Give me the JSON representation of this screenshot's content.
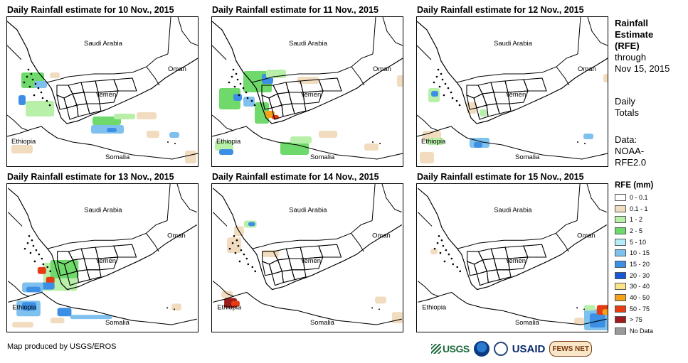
{
  "panels": [
    {
      "title": "Daily Rainfall estimate for 10 Nov., 2015",
      "blobs": [
        {
          "x": 20,
          "y": 78,
          "w": 32,
          "h": 22,
          "c": "green"
        },
        {
          "x": 38,
          "y": 90,
          "w": 18,
          "h": 10,
          "c": "light_blue"
        },
        {
          "x": 60,
          "y": 78,
          "w": 14,
          "h": 8,
          "c": "beige"
        },
        {
          "x": 16,
          "y": 110,
          "w": 10,
          "h": 14,
          "c": "blue"
        },
        {
          "x": 26,
          "y": 118,
          "w": 40,
          "h": 22,
          "c": "light_green"
        },
        {
          "x": 120,
          "y": 140,
          "w": 40,
          "h": 12,
          "c": "green"
        },
        {
          "x": 118,
          "y": 152,
          "w": 46,
          "h": 12,
          "c": "light_blue"
        },
        {
          "x": 140,
          "y": 156,
          "w": 14,
          "h": 6,
          "c": "blue"
        },
        {
          "x": 150,
          "y": 136,
          "w": 30,
          "h": 8,
          "c": "light_green"
        },
        {
          "x": 182,
          "y": 134,
          "w": 28,
          "h": 10,
          "c": "beige"
        },
        {
          "x": 228,
          "y": 162,
          "w": 14,
          "h": 8,
          "c": "light_blue"
        },
        {
          "x": 250,
          "y": 188,
          "w": 16,
          "h": 18,
          "c": "beige"
        },
        {
          "x": 6,
          "y": 180,
          "w": 30,
          "h": 12,
          "c": "beige"
        },
        {
          "x": 196,
          "y": 160,
          "w": 18,
          "h": 10,
          "c": "beige"
        }
      ]
    },
    {
      "title": "Daily Rainfall estimate for 11 Nov., 2015",
      "blobs": [
        {
          "x": 44,
          "y": 76,
          "w": 40,
          "h": 30,
          "c": "green"
        },
        {
          "x": 70,
          "y": 80,
          "w": 16,
          "h": 14,
          "c": "blue"
        },
        {
          "x": 76,
          "y": 74,
          "w": 28,
          "h": 12,
          "c": "light_green"
        },
        {
          "x": 10,
          "y": 100,
          "w": 30,
          "h": 30,
          "c": "green"
        },
        {
          "x": 30,
          "y": 108,
          "w": 12,
          "h": 10,
          "c": "blue"
        },
        {
          "x": 44,
          "y": 112,
          "w": 16,
          "h": 14,
          "c": "light_blue"
        },
        {
          "x": 60,
          "y": 120,
          "w": 20,
          "h": 30,
          "c": "green"
        },
        {
          "x": 74,
          "y": 132,
          "w": 14,
          "h": 10,
          "c": "orange"
        },
        {
          "x": 84,
          "y": 138,
          "w": 10,
          "h": 6,
          "c": "red"
        },
        {
          "x": 4,
          "y": 174,
          "w": 26,
          "h": 14,
          "c": "light_green"
        },
        {
          "x": 10,
          "y": 186,
          "w": 20,
          "h": 8,
          "c": "blue"
        },
        {
          "x": 96,
          "y": 176,
          "w": 40,
          "h": 18,
          "c": "green"
        },
        {
          "x": 110,
          "y": 168,
          "w": 30,
          "h": 10,
          "c": "light_green"
        },
        {
          "x": 214,
          "y": 178,
          "w": 20,
          "h": 10,
          "c": "beige"
        },
        {
          "x": 150,
          "y": 160,
          "w": 26,
          "h": 10,
          "c": "beige"
        },
        {
          "x": 120,
          "y": 84,
          "w": 30,
          "h": 10,
          "c": "beige"
        },
        {
          "x": 260,
          "y": 82,
          "w": 12,
          "h": 16,
          "c": "beige"
        }
      ]
    },
    {
      "title": "Daily Rainfall estimate for 12 Nov., 2015",
      "blobs": [
        {
          "x": 16,
          "y": 100,
          "w": 16,
          "h": 20,
          "c": "light_green"
        },
        {
          "x": 20,
          "y": 104,
          "w": 10,
          "h": 8,
          "c": "blue"
        },
        {
          "x": 70,
          "y": 120,
          "w": 14,
          "h": 16,
          "c": "beige"
        },
        {
          "x": 88,
          "y": 130,
          "w": 10,
          "h": 10,
          "c": "light_green"
        },
        {
          "x": 8,
          "y": 160,
          "w": 26,
          "h": 14,
          "c": "beige"
        },
        {
          "x": 14,
          "y": 170,
          "w": 24,
          "h": 10,
          "c": "light_green"
        },
        {
          "x": 74,
          "y": 170,
          "w": 28,
          "h": 14,
          "c": "light_blue"
        },
        {
          "x": 80,
          "y": 176,
          "w": 12,
          "h": 8,
          "c": "blue"
        },
        {
          "x": 234,
          "y": 164,
          "w": 14,
          "h": 8,
          "c": "light_blue"
        },
        {
          "x": 262,
          "y": 80,
          "w": 12,
          "h": 12,
          "c": "beige"
        },
        {
          "x": 4,
          "y": 190,
          "w": 20,
          "h": 16,
          "c": "beige"
        }
      ]
    },
    {
      "title": "Daily Rainfall estimate for 13 Nov., 2015",
      "blobs": [
        {
          "x": 50,
          "y": 112,
          "w": 48,
          "h": 40,
          "c": "light_green"
        },
        {
          "x": 60,
          "y": 108,
          "w": 40,
          "h": 26,
          "c": "green"
        },
        {
          "x": 42,
          "y": 118,
          "w": 12,
          "h": 10,
          "c": "red"
        },
        {
          "x": 54,
          "y": 132,
          "w": 12,
          "h": 10,
          "c": "red"
        },
        {
          "x": 46,
          "y": 140,
          "w": 20,
          "h": 10,
          "c": "blue"
        },
        {
          "x": 20,
          "y": 140,
          "w": 30,
          "h": 14,
          "c": "light_blue"
        },
        {
          "x": 26,
          "y": 146,
          "w": 20,
          "h": 8,
          "c": "blue"
        },
        {
          "x": 12,
          "y": 166,
          "w": 34,
          "h": 22,
          "c": "light_blue"
        },
        {
          "x": 20,
          "y": 168,
          "w": 20,
          "h": 12,
          "c": "blue"
        },
        {
          "x": 70,
          "y": 176,
          "w": 20,
          "h": 12,
          "c": "blue"
        },
        {
          "x": 88,
          "y": 186,
          "w": 60,
          "h": 6,
          "c": "light_blue"
        },
        {
          "x": 60,
          "y": 190,
          "w": 20,
          "h": 8,
          "c": "beige"
        },
        {
          "x": 232,
          "y": 170,
          "w": 14,
          "h": 10,
          "c": "beige"
        },
        {
          "x": 6,
          "y": 196,
          "w": 30,
          "h": 8,
          "c": "beige"
        }
      ]
    },
    {
      "title": "Daily Rainfall estimate for 14 Nov., 2015",
      "blobs": [
        {
          "x": 44,
          "y": 52,
          "w": 18,
          "h": 10,
          "c": "light_green"
        },
        {
          "x": 50,
          "y": 54,
          "w": 10,
          "h": 6,
          "c": "blue"
        },
        {
          "x": 30,
          "y": 60,
          "w": 14,
          "h": 14,
          "c": "beige"
        },
        {
          "x": 20,
          "y": 76,
          "w": 20,
          "h": 22,
          "c": "beige"
        },
        {
          "x": 70,
          "y": 94,
          "w": 24,
          "h": 10,
          "c": "beige"
        },
        {
          "x": 16,
          "y": 162,
          "w": 18,
          "h": 14,
          "c": "darkred"
        },
        {
          "x": 26,
          "y": 166,
          "w": 12,
          "h": 8,
          "c": "red"
        },
        {
          "x": 12,
          "y": 152,
          "w": 16,
          "h": 10,
          "c": "beige"
        },
        {
          "x": 230,
          "y": 160,
          "w": 16,
          "h": 10,
          "c": "beige"
        },
        {
          "x": 254,
          "y": 182,
          "w": 16,
          "h": 16,
          "c": "beige"
        }
      ]
    },
    {
      "title": "Daily Rainfall estimate for 15 Nov., 2015",
      "blobs": [
        {
          "x": 236,
          "y": 178,
          "w": 36,
          "h": 30,
          "c": "light_blue"
        },
        {
          "x": 244,
          "y": 184,
          "w": 22,
          "h": 20,
          "c": "blue"
        },
        {
          "x": 254,
          "y": 172,
          "w": 20,
          "h": 14,
          "c": "red"
        },
        {
          "x": 262,
          "y": 178,
          "w": 10,
          "h": 8,
          "c": "orange"
        },
        {
          "x": 236,
          "y": 172,
          "w": 16,
          "h": 8,
          "c": "light_green"
        },
        {
          "x": 222,
          "y": 190,
          "w": 14,
          "h": 10,
          "c": "beige"
        },
        {
          "x": 18,
          "y": 92,
          "w": 10,
          "h": 8,
          "c": "beige"
        }
      ]
    }
  ],
  "map_labels": {
    "saudi": "Saudi Arabia",
    "oman": "Oman",
    "yemen": "Yemen",
    "ethiopia": "Ethiopia",
    "somalia": "Somalia"
  },
  "sidebar": {
    "line1": "Rainfall",
    "line2": "Estimate",
    "line3": "(RFE)",
    "line4": "through",
    "line5": "Nov 15, 2015",
    "daily1": "Daily",
    "daily2": "Totals",
    "data1": "Data:",
    "data2": "NOAA-",
    "data3": "RFE2.0"
  },
  "legend": {
    "title": "RFE (mm)",
    "items": [
      {
        "label": "0 - 0.1",
        "color": "#ffffff"
      },
      {
        "label": "0.1 - 1",
        "color": "#f2dcbf"
      },
      {
        "label": "1 - 2",
        "color": "#b9f0a9"
      },
      {
        "label": "2 - 5",
        "color": "#6fd96b"
      },
      {
        "label": "5 - 10",
        "color": "#b5ecf8"
      },
      {
        "label": "10 - 15",
        "color": "#7ec0ee"
      },
      {
        "label": "15 - 20",
        "color": "#3d8fe5"
      },
      {
        "label": "20 - 30",
        "color": "#1558d6"
      },
      {
        "label": "30 - 40",
        "color": "#fbe38a"
      },
      {
        "label": "40 - 50",
        "color": "#f5a21b"
      },
      {
        "label": "50 - 75",
        "color": "#e53c14"
      },
      {
        "label": "> 75",
        "color": "#9e1c1c"
      },
      {
        "label": "No Data",
        "color": "#9a9a9a"
      }
    ]
  },
  "colors": {
    "beige": "#f2dcbf",
    "light_green": "#b9f0a9",
    "green": "#6fd96b",
    "light_blue": "#7ec0ee",
    "blue": "#3d8fe5",
    "orange": "#f5a21b",
    "red": "#e53c14",
    "darkred": "#9e1c1c"
  },
  "footer": {
    "credit": "Map produced by USGS/EROS",
    "logos": [
      "USGS",
      "NOAA",
      "Department of State",
      "USAID",
      "FEWS NET"
    ],
    "usgs_text": "USGS",
    "usaid_text": "USAID",
    "fews_text": "FEWS NET"
  }
}
